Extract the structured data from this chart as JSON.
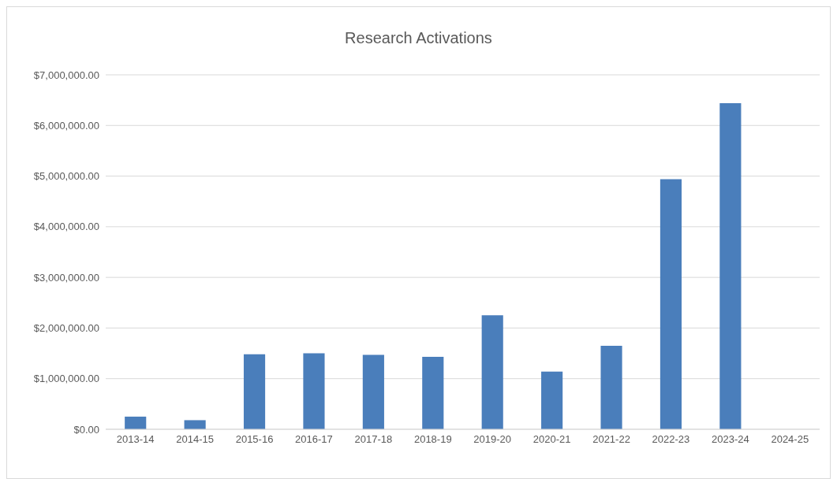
{
  "chart_data": {
    "type": "bar",
    "title": "Research Activations",
    "categories": [
      "2013-14",
      "2014-15",
      "2015-16",
      "2016-17",
      "2017-18",
      "2018-19",
      "2019-20",
      "2020-21",
      "2021-22",
      "2022-23",
      "2023-24",
      "2024-25"
    ],
    "values": [
      250000,
      180000,
      1480000,
      1500000,
      1470000,
      1430000,
      2250000,
      1140000,
      1650000,
      4940000,
      6440000,
      0
    ],
    "color": "#4a7ebb",
    "ylim": [
      0,
      7000000
    ],
    "yticks": [
      {
        "value": 0,
        "label": "$0.00"
      },
      {
        "value": 1000000,
        "label": "$1,000,000.00"
      },
      {
        "value": 2000000,
        "label": "$2,000,000.00"
      },
      {
        "value": 3000000,
        "label": "$3,000,000.00"
      },
      {
        "value": 4000000,
        "label": "$4,000,000.00"
      },
      {
        "value": 5000000,
        "label": "$5,000,000.00"
      },
      {
        "value": 6000000,
        "label": "$6,000,000.00"
      },
      {
        "value": 7000000,
        "label": "$7,000,000.00"
      }
    ],
    "grid": "y",
    "legend": false
  }
}
